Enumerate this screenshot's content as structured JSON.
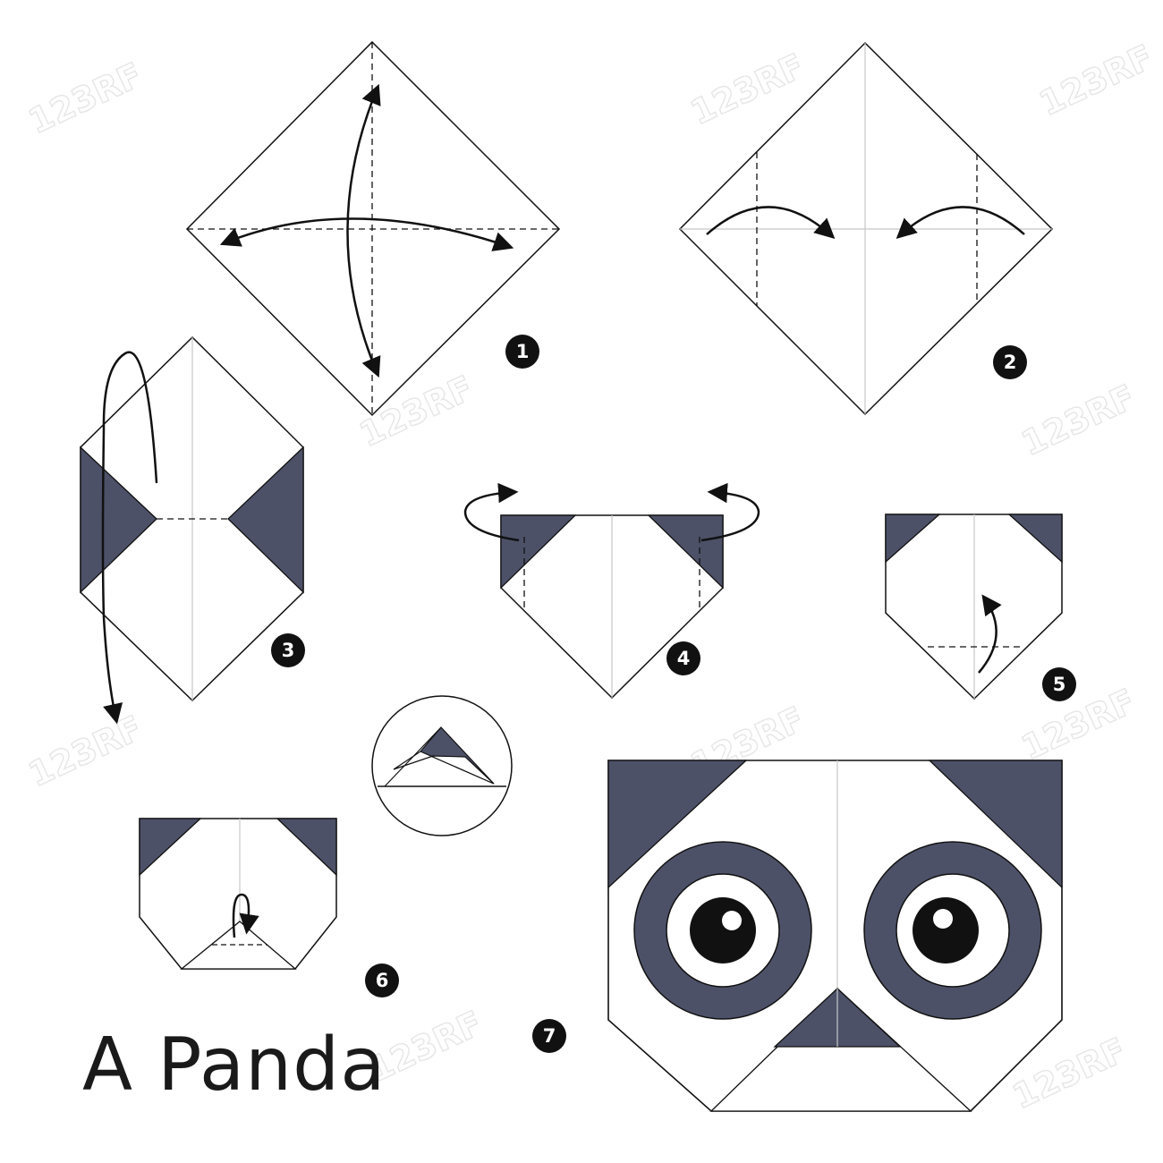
{
  "title": "A Panda",
  "colors": {
    "dark": "#4d5168",
    "line": "#111111",
    "guide": "#c8c8c8",
    "eye_white": "#ffffff",
    "pupil": "#111111",
    "watermark": "#e6e6e6"
  },
  "watermark_text": "123RF",
  "steps": [
    {
      "number": "1",
      "name": "crease-diagonals"
    },
    {
      "number": "2",
      "name": "fold-corners-to-center"
    },
    {
      "number": "3",
      "name": "turn-over"
    },
    {
      "number": "4",
      "name": "fold-sides-back"
    },
    {
      "number": "5",
      "name": "fold-bottom-tip-up"
    },
    {
      "number": "6",
      "name": "fold-tip-down"
    },
    {
      "number": "7",
      "name": "draw-face"
    }
  ]
}
